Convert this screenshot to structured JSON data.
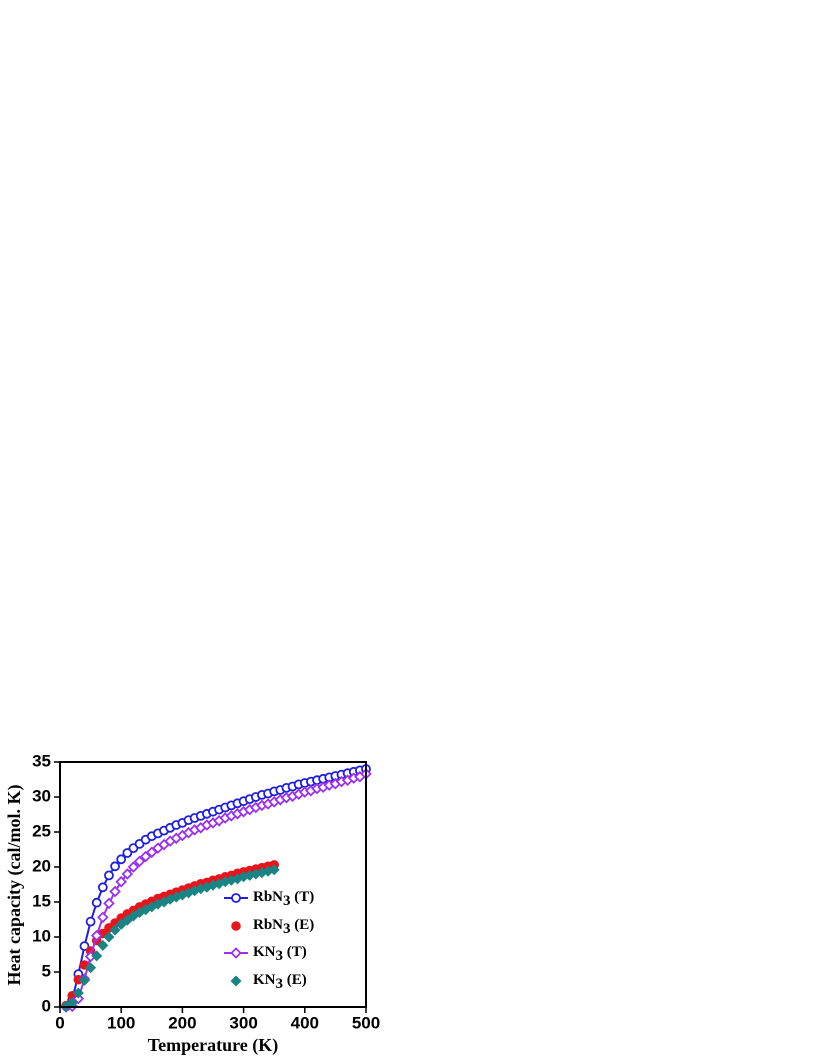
{
  "chart_data": {
    "type": "line-scatter",
    "x_label": "Temperature (K)",
    "y_label": "Heat capacity (cal/mol. K)",
    "xlim": [
      0,
      500
    ],
    "xticks": [
      0,
      100,
      200,
      300,
      400,
      500
    ],
    "ylim": [
      0,
      35
    ],
    "yticks": [
      0,
      5,
      10,
      15,
      20,
      25,
      30,
      35
    ],
    "series": [
      {
        "name": "RbN3 (T)",
        "color": "#1f1fe0",
        "marker": "open-circle",
        "line": true,
        "x": [
          10,
          20,
          30,
          40,
          50,
          60,
          70,
          80,
          90,
          100,
          110,
          120,
          130,
          140,
          150,
          160,
          170,
          180,
          190,
          200,
          210,
          220,
          230,
          240,
          250,
          260,
          270,
          280,
          290,
          300,
          310,
          320,
          330,
          340,
          350,
          360,
          370,
          380,
          390,
          400,
          410,
          420,
          430,
          440,
          450,
          460,
          470,
          480,
          490,
          500
        ],
        "values": [
          0.1,
          1.0,
          4.7,
          8.7,
          12.2,
          14.9,
          17.1,
          18.8,
          20.1,
          21.1,
          22.0,
          22.7,
          23.3,
          23.9,
          24.4,
          24.8,
          25.2,
          25.6,
          26.0,
          26.3,
          26.7,
          27.0,
          27.3,
          27.6,
          27.9,
          28.2,
          28.5,
          28.8,
          29.1,
          29.4,
          29.7,
          30.0,
          30.3,
          30.5,
          30.8,
          31.0,
          31.3,
          31.5,
          31.8,
          32.0,
          32.2,
          32.4,
          32.6,
          32.8,
          33.0,
          33.2,
          33.4,
          33.6,
          33.8,
          34.0
        ]
      },
      {
        "name": "RbN3 (E)",
        "color": "#e8141c",
        "marker": "filled-circle",
        "line": false,
        "x": [
          10,
          20,
          30,
          40,
          50,
          60,
          70,
          80,
          90,
          100,
          110,
          120,
          130,
          140,
          150,
          160,
          170,
          180,
          190,
          200,
          210,
          220,
          230,
          240,
          250,
          260,
          270,
          280,
          290,
          300,
          310,
          320,
          330,
          340,
          350
        ],
        "values": [
          0.2,
          1.6,
          3.9,
          6.0,
          8.0,
          9.5,
          10.5,
          11.3,
          12.0,
          12.7,
          13.3,
          13.8,
          14.3,
          14.7,
          15.1,
          15.5,
          15.8,
          16.1,
          16.4,
          16.7,
          17.0,
          17.3,
          17.6,
          17.8,
          18.1,
          18.3,
          18.6,
          18.8,
          19.1,
          19.3,
          19.5,
          19.7,
          19.9,
          20.1,
          20.3
        ]
      },
      {
        "name": "KN3 (T)",
        "color": "#9b30f0",
        "marker": "open-diamond",
        "line": true,
        "x": [
          10,
          20,
          30,
          40,
          50,
          60,
          70,
          80,
          90,
          100,
          110,
          120,
          130,
          140,
          150,
          160,
          170,
          180,
          190,
          200,
          210,
          220,
          230,
          240,
          250,
          260,
          270,
          280,
          290,
          300,
          310,
          320,
          330,
          340,
          350,
          360,
          370,
          380,
          390,
          400,
          410,
          420,
          430,
          440,
          450,
          460,
          470,
          480,
          490,
          500
        ],
        "values": [
          0,
          0.1,
          1.2,
          4.0,
          7.2,
          10.2,
          12.8,
          14.8,
          16.5,
          17.9,
          19.0,
          20.0,
          20.8,
          21.5,
          22.1,
          22.7,
          23.2,
          23.7,
          24.1,
          24.5,
          24.9,
          25.3,
          25.6,
          26.0,
          26.3,
          26.6,
          27.0,
          27.3,
          27.6,
          27.9,
          28.2,
          28.5,
          28.8,
          29.0,
          29.3,
          29.6,
          29.9,
          30.1,
          30.4,
          30.7,
          30.9,
          31.2,
          31.4,
          31.7,
          31.9,
          32.2,
          32.4,
          32.7,
          32.9,
          33.3
        ]
      },
      {
        "name": "KN3 (E)",
        "color": "#1a8484",
        "marker": "filled-diamond",
        "line": false,
        "x": [
          10,
          20,
          30,
          40,
          50,
          60,
          70,
          80,
          90,
          100,
          110,
          120,
          130,
          140,
          150,
          160,
          170,
          180,
          190,
          200,
          210,
          220,
          230,
          240,
          250,
          260,
          270,
          280,
          290,
          300,
          310,
          320,
          330,
          340,
          350
        ],
        "values": [
          0.1,
          0.6,
          2.0,
          3.8,
          5.6,
          7.3,
          8.8,
          10.0,
          11.0,
          11.8,
          12.4,
          13.0,
          13.5,
          13.9,
          14.3,
          14.7,
          15.0,
          15.4,
          15.7,
          16.0,
          16.3,
          16.6,
          16.9,
          17.1,
          17.4,
          17.6,
          17.9,
          18.1,
          18.3,
          18.6,
          18.8,
          19.0,
          19.2,
          19.4,
          19.6
        ]
      }
    ]
  }
}
